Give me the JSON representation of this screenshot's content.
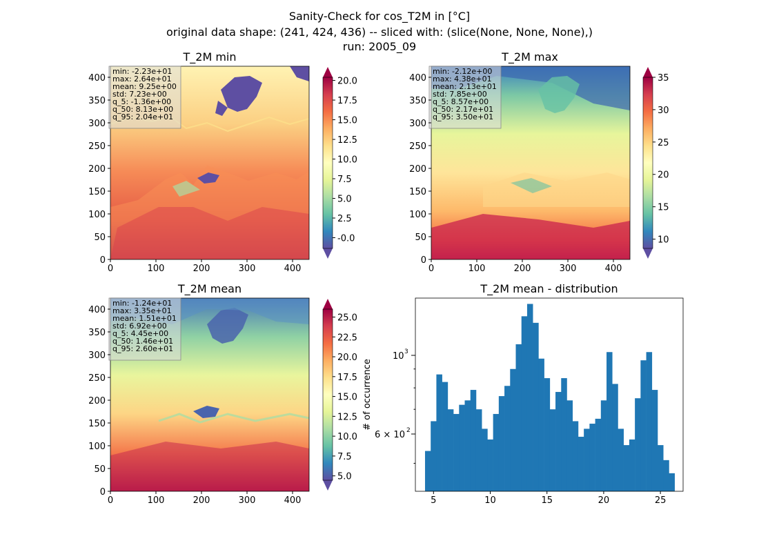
{
  "figure": {
    "title_lines": [
      "Sanity-Check for cos_T2M in [°C]",
      "original data shape: (241, 424, 436) -- sliced with: (slice(None, None, None),)",
      "run: 2005_09"
    ]
  },
  "panels": [
    {
      "id": "min",
      "title": "T_2M min",
      "stats": [
        "min: -2.23e+01",
        "max: 2.64e+01",
        "mean: 9.25e+00",
        "std: 7.23e+00",
        "q_5: -1.36e+00",
        "q_50: 8.13e+00",
        "q_95: 2.04e+01"
      ],
      "colorbar": {
        "vmin": -1.36,
        "vmax": 20.4,
        "ticks": [
          "-0.0",
          "2.5",
          "5.0",
          "7.5",
          "10.0",
          "12.5",
          "15.0",
          "17.5",
          "20.0"
        ],
        "tick_values": [
          0,
          2.5,
          5,
          7.5,
          10,
          12.5,
          15,
          17.5,
          20
        ]
      }
    },
    {
      "id": "max",
      "title": "T_2M max",
      "stats": [
        "min: -2.12e+00",
        "max: 4.38e+01",
        "mean: 2.13e+01",
        "std: 7.85e+00",
        "q_5: 8.57e+00",
        "q_50: 2.17e+01",
        "q_95: 3.50e+01"
      ],
      "colorbar": {
        "vmin": 8.57,
        "vmax": 35.0,
        "ticks": [
          "10",
          "15",
          "20",
          "25",
          "30",
          "35"
        ],
        "tick_values": [
          10,
          15,
          20,
          25,
          30,
          35
        ]
      }
    },
    {
      "id": "mean",
      "title": "T_2M mean",
      "stats": [
        "min: -1.24e+01",
        "max: 3.35e+01",
        "mean: 1.51e+01",
        "std: 6.92e+00",
        "q_5: 4.45e+00",
        "q_50: 1.46e+01",
        "q_95: 2.60e+01"
      ],
      "colorbar": {
        "vmin": 4.45,
        "vmax": 26.0,
        "ticks": [
          "5.0",
          "7.5",
          "10.0",
          "12.5",
          "15.0",
          "17.5",
          "20.0",
          "22.5",
          "25.0"
        ],
        "tick_values": [
          5,
          7.5,
          10,
          12.5,
          15,
          17.5,
          20,
          22.5,
          25
        ]
      }
    }
  ],
  "map_axes": {
    "x_ticks": [
      "0",
      "100",
      "200",
      "300",
      "400"
    ],
    "x_tick_values": [
      0,
      100,
      200,
      300,
      400
    ],
    "x_range": [
      0,
      436
    ],
    "y_ticks": [
      "0",
      "50",
      "100",
      "150",
      "200",
      "250",
      "300",
      "350",
      "400"
    ],
    "y_tick_values": [
      0,
      50,
      100,
      150,
      200,
      250,
      300,
      350,
      400
    ],
    "y_range": [
      0,
      424
    ]
  },
  "colormap": "Spectral_r",
  "chart_data": {
    "type": "bar",
    "title": "T_2M mean - distribution",
    "xlabel": "",
    "ylabel": "# of occurrence",
    "y_scale": "log",
    "xlim": [
      3.4,
      27.0
    ],
    "ylim": [
      420,
      1400
    ],
    "x_ticks": [
      "5",
      "10",
      "15",
      "20",
      "25"
    ],
    "x_tick_values": [
      5,
      10,
      15,
      20,
      25
    ],
    "y_ticks": [
      "$10^3$",
      "$6\\times10^2$"
    ],
    "y_tick_labels_display": [
      "10",
      "3",
      "6 × 10",
      "2"
    ],
    "y_tick_values": [
      1000,
      600
    ],
    "color": "#1f77b4",
    "bin_centers": [
      4.5,
      5.0,
      5.5,
      6.0,
      6.5,
      7.0,
      7.5,
      8.0,
      8.5,
      9.0,
      9.5,
      10.0,
      10.5,
      11.0,
      11.5,
      12.0,
      12.5,
      13.0,
      13.5,
      14.0,
      14.5,
      15.0,
      15.5,
      16.0,
      16.5,
      17.0,
      17.5,
      18.0,
      18.5,
      19.0,
      19.5,
      20.0,
      20.5,
      21.0,
      21.5,
      22.0,
      22.5,
      23.0,
      23.5,
      24.0,
      24.5,
      25.0,
      25.5,
      26.0
    ],
    "values": [
      540,
      650,
      870,
      830,
      700,
      680,
      720,
      740,
      790,
      700,
      620,
      580,
      680,
      760,
      810,
      900,
      1050,
      1250,
      1350,
      1200,
      960,
      850,
      700,
      780,
      850,
      740,
      650,
      590,
      620,
      640,
      660,
      740,
      1000,
      820,
      620,
      560,
      580,
      750,
      950,
      1000,
      790,
      560,
      510,
      470
    ]
  }
}
